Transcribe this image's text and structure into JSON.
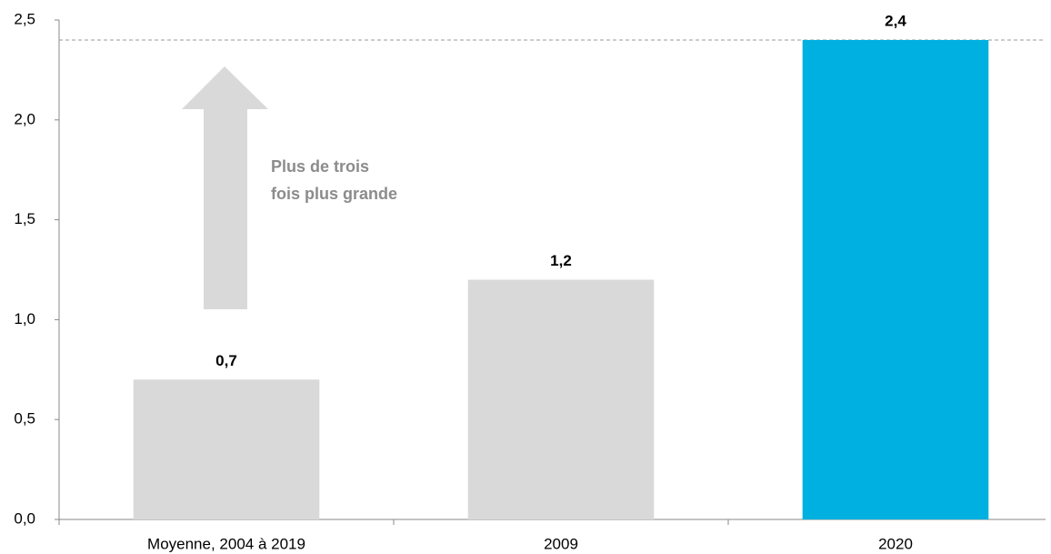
{
  "chart_data": {
    "type": "bar",
    "categories": [
      "Moyenne, 2004 à 2019",
      "2009",
      "2020"
    ],
    "values": [
      0.7,
      1.2,
      2.4
    ],
    "value_labels": [
      "0,7",
      "1,2",
      "2,4"
    ],
    "colors": [
      "#d9d9d9",
      "#d9d9d9",
      "#00b0e0"
    ],
    "ylim": [
      0,
      2.5
    ],
    "yticks": [
      {
        "value": 0,
        "label": "0,0"
      },
      {
        "value": 0.5,
        "label": "0,5"
      },
      {
        "value": 1,
        "label": "1,0"
      },
      {
        "value": 1.5,
        "label": "1,5"
      },
      {
        "value": 2,
        "label": "2,0"
      },
      {
        "value": 2.5,
        "label": "2,5"
      }
    ],
    "annotation": [
      "Plus de trois",
      "fois plus grande"
    ],
    "grid": false
  }
}
